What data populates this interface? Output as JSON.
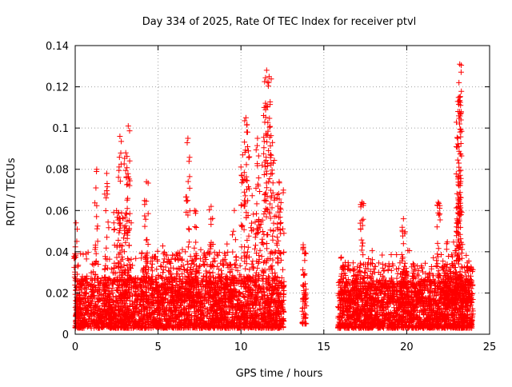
{
  "chart_data": {
    "type": "scatter",
    "title": "Day 334 of 2025, Rate Of TEC Index for receiver ptvl",
    "xlabel": "GPS time / hours",
    "ylabel": "ROTI / TECUs",
    "xlim": [
      0,
      25
    ],
    "ylim": [
      0,
      0.14
    ],
    "x_ticks": [
      "0",
      "5",
      "10",
      "15",
      "20",
      "25"
    ],
    "y_ticks": [
      "0",
      "0.02",
      "0.04",
      "0.06",
      "0.08",
      "0.1",
      "0.12",
      "0.14"
    ],
    "grid": true,
    "marker": "+",
    "marker_color": "#ff0000",
    "series": [
      {
        "name": "ROTI",
        "segments": [
          {
            "x_range": [
              0.0,
              12.6
            ],
            "base": [
              0.003,
              0.028
            ]
          },
          {
            "x_range": [
              13.7,
              13.95
            ],
            "base": [
              0.005,
              0.045
            ]
          },
          {
            "x_range": [
              15.85,
              24.0
            ],
            "base": [
              0.003,
              0.026
            ]
          }
        ],
        "peaks": [
          {
            "x": 0.05,
            "y": 0.054
          },
          {
            "x": 1.3,
            "y": 0.08
          },
          {
            "x": 1.9,
            "y": 0.078
          },
          {
            "x": 2.7,
            "y": 0.096
          },
          {
            "x": 3.2,
            "y": 0.101
          },
          {
            "x": 3.05,
            "y": 0.088
          },
          {
            "x": 4.3,
            "y": 0.074
          },
          {
            "x": 6.8,
            "y": 0.095
          },
          {
            "x": 7.2,
            "y": 0.06
          },
          {
            "x": 8.2,
            "y": 0.062
          },
          {
            "x": 9.6,
            "y": 0.06
          },
          {
            "x": 10.3,
            "y": 0.105
          },
          {
            "x": 10.4,
            "y": 0.098
          },
          {
            "x": 10.1,
            "y": 0.087
          },
          {
            "x": 11.0,
            "y": 0.095
          },
          {
            "x": 11.4,
            "y": 0.11
          },
          {
            "x": 11.55,
            "y": 0.128
          },
          {
            "x": 11.7,
            "y": 0.125
          },
          {
            "x": 11.9,
            "y": 0.093
          },
          {
            "x": 12.3,
            "y": 0.074
          },
          {
            "x": 17.3,
            "y": 0.064
          },
          {
            "x": 19.8,
            "y": 0.056
          },
          {
            "x": 21.9,
            "y": 0.064
          },
          {
            "x": 23.2,
            "y": 0.131
          },
          {
            "x": 23.15,
            "y": 0.122
          },
          {
            "x": 23.2,
            "y": 0.115
          },
          {
            "x": 23.1,
            "y": 0.108
          },
          {
            "x": 23.15,
            "y": 0.081
          },
          {
            "x": 23.1,
            "y": 0.066
          }
        ]
      }
    ]
  }
}
